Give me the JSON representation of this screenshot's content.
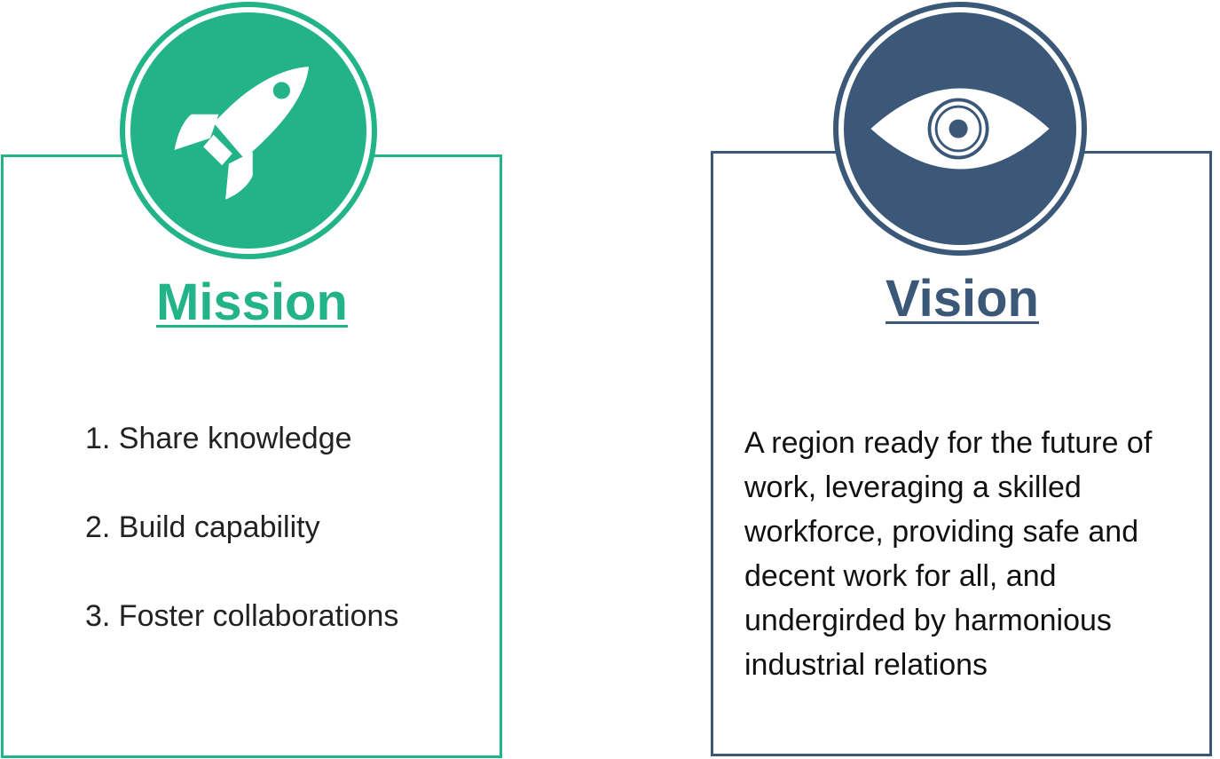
{
  "mission": {
    "title": "Mission",
    "icon": "rocket-icon",
    "color": "#22b388",
    "items": [
      "1. Share knowledge",
      "2. Build capability",
      "3. Foster collaborations"
    ]
  },
  "vision": {
    "title": "Vision",
    "icon": "eye-icon",
    "color": "#3b5878",
    "text": "A region ready for the future of work, leveraging a skilled workforce, providing safe and decent work for all, and undergirded by harmonious industrial relations"
  }
}
